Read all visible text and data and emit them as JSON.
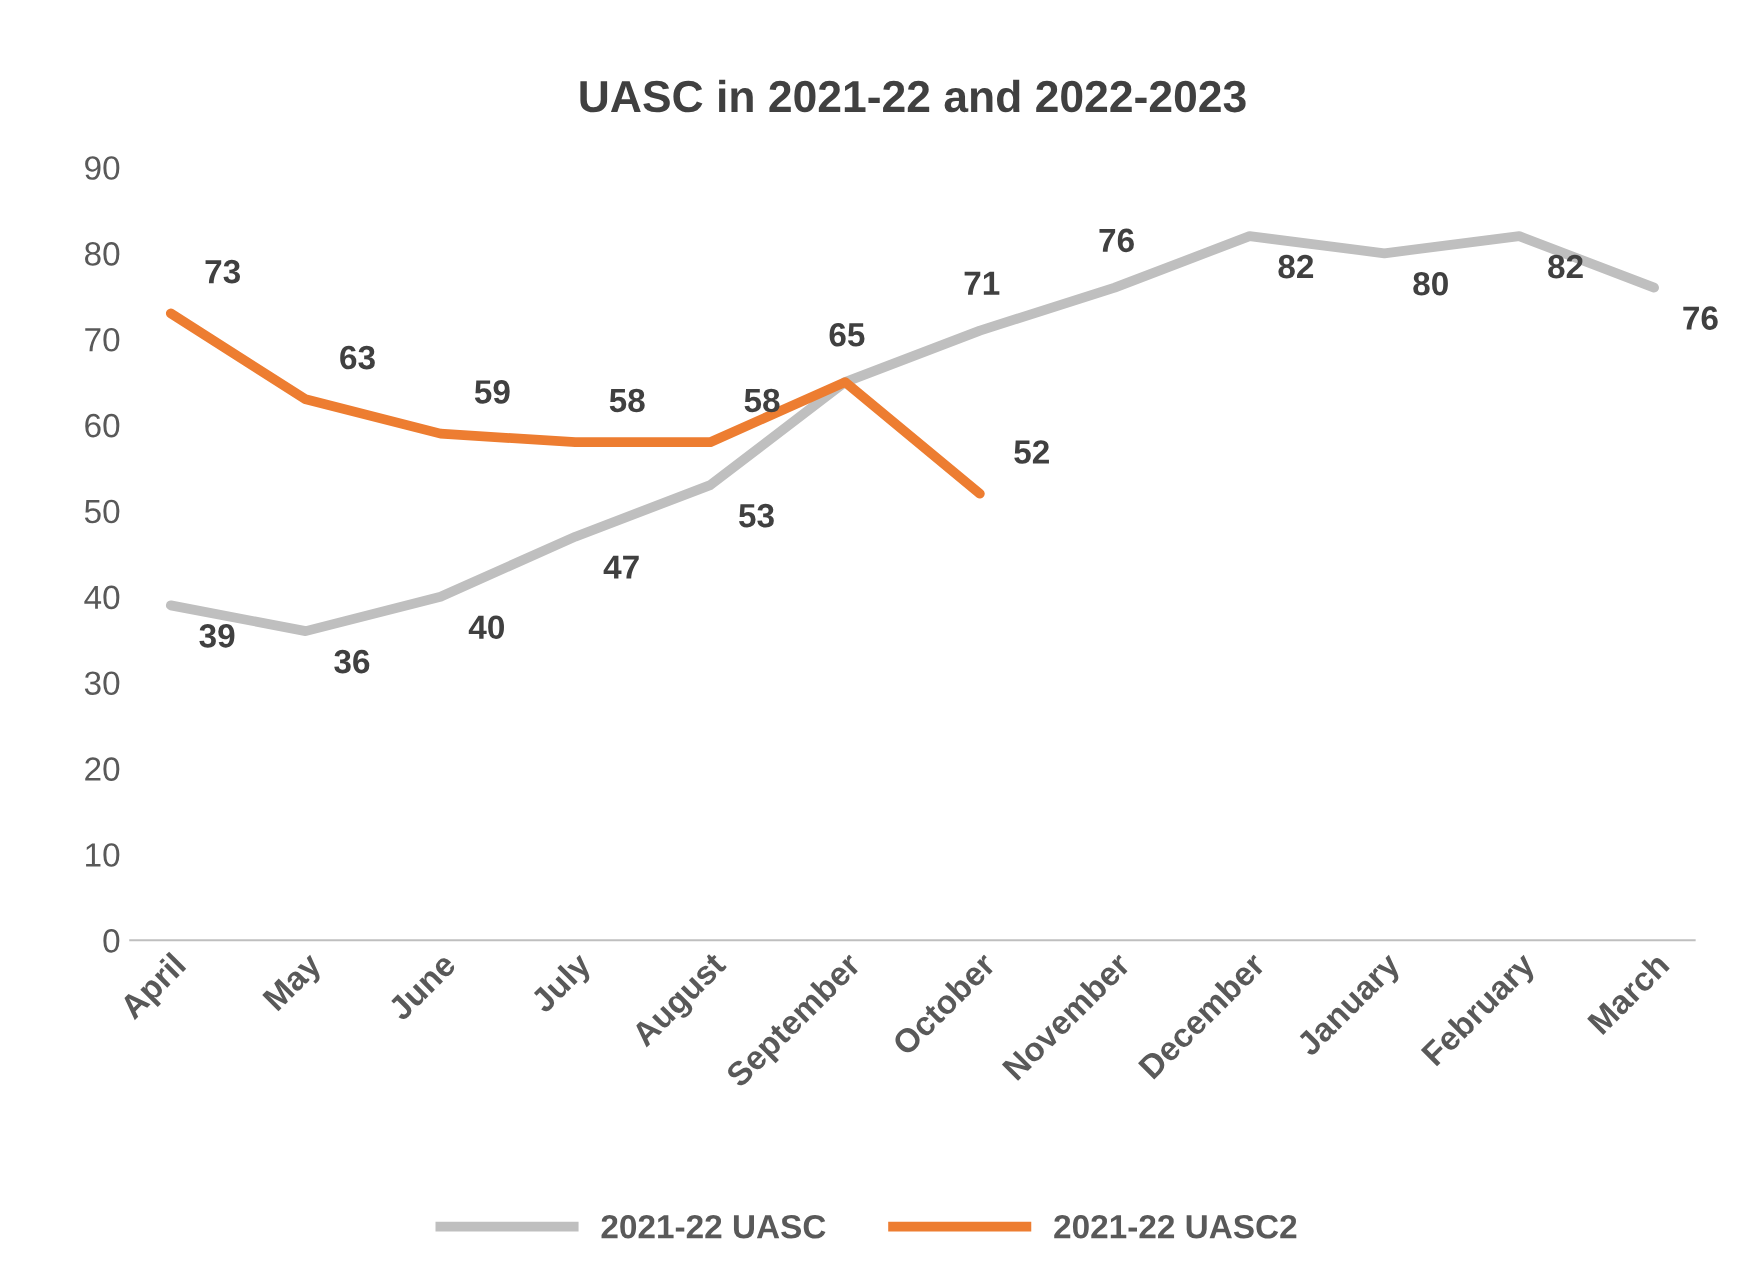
{
  "chart_data": {
    "type": "line",
    "title": "UASC in 2021-22 and 2022-2023",
    "categories": [
      "April",
      "May",
      "June",
      "July",
      "August",
      "September",
      "October",
      "November",
      "December",
      "January",
      "February",
      "March"
    ],
    "series": [
      {
        "name": "2021-22 UASC",
        "color": "#bfbfbf",
        "values": [
          39,
          36,
          40,
          47,
          53,
          65,
          71,
          76,
          82,
          80,
          82,
          76
        ],
        "value_labels": [
          "39",
          "36",
          "40",
          "47",
          "53",
          "65",
          "71",
          "76",
          "82",
          "80",
          "82",
          "76"
        ]
      },
      {
        "name": "2021-22 UASC2",
        "color": "#ed7d31",
        "values": [
          73,
          63,
          59,
          58,
          58,
          65,
          52,
          null,
          null,
          null,
          null,
          null
        ],
        "value_labels": [
          "73",
          "63",
          "59",
          "58",
          "58",
          null,
          "52",
          null,
          null,
          null,
          null,
          null
        ]
      }
    ],
    "ylim": [
      0,
      90
    ],
    "yticks": [
      0,
      10,
      20,
      30,
      40,
      50,
      60,
      70,
      80,
      90
    ],
    "grid": false,
    "legend": "bottom",
    "marker": "none",
    "line_style": "solid"
  }
}
